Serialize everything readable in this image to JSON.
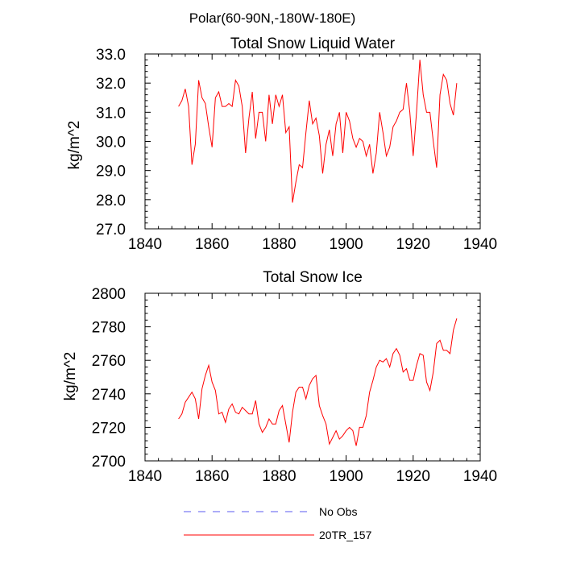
{
  "figure_title": "Polar(60-90N,-180W-180E)",
  "chart_data": [
    {
      "type": "line",
      "title": "Total Snow Liquid Water",
      "ylabel": "kg/m^2",
      "xlabel": "",
      "xlim": [
        1840,
        1940
      ],
      "ylim": [
        27.0,
        33.0
      ],
      "x_ticks": [
        1840,
        1860,
        1880,
        1900,
        1920,
        1940
      ],
      "y_ticks": [
        27.0,
        28.0,
        29.0,
        30.0,
        31.0,
        32.0,
        33.0
      ],
      "x_tick_labels": [
        "1840",
        "1860",
        "1880",
        "1900",
        "1920",
        "1940"
      ],
      "y_tick_labels": [
        "27.0",
        "28.0",
        "29.0",
        "30.0",
        "31.0",
        "32.0",
        "33.0"
      ],
      "series": [
        {
          "name": "20TR_157",
          "color": "#ff0000",
          "x": [
            1850,
            1851,
            1852,
            1853,
            1854,
            1855,
            1856,
            1857,
            1858,
            1859,
            1860,
            1861,
            1862,
            1863,
            1864,
            1865,
            1866,
            1867,
            1868,
            1869,
            1870,
            1871,
            1872,
            1873,
            1874,
            1875,
            1876,
            1877,
            1878,
            1879,
            1880,
            1881,
            1882,
            1883,
            1884,
            1885,
            1886,
            1887,
            1888,
            1889,
            1890,
            1891,
            1892,
            1893,
            1894,
            1895,
            1896,
            1897,
            1898,
            1899,
            1900,
            1901,
            1902,
            1903,
            1904,
            1905,
            1906,
            1907,
            1908,
            1909,
            1910,
            1911,
            1912,
            1913,
            1914,
            1915,
            1916,
            1917,
            1918,
            1919,
            1920,
            1921,
            1922,
            1923,
            1924,
            1925,
            1926,
            1927,
            1928,
            1929,
            1930,
            1931,
            1932,
            1933
          ],
          "values": [
            31.2,
            31.4,
            31.8,
            31.2,
            29.2,
            29.9,
            32.1,
            31.5,
            31.3,
            30.5,
            29.8,
            31.5,
            31.7,
            31.2,
            31.2,
            31.3,
            31.2,
            32.1,
            31.9,
            31.2,
            29.6,
            30.8,
            31.7,
            30.1,
            31.0,
            31.0,
            30.0,
            31.6,
            30.6,
            31.6,
            31.2,
            31.6,
            30.3,
            30.5,
            27.9,
            28.6,
            29.2,
            29.1,
            30.3,
            31.4,
            30.6,
            30.8,
            30.2,
            28.9,
            29.9,
            30.4,
            29.5,
            30.6,
            31.0,
            29.6,
            31.0,
            30.7,
            30.1,
            29.8,
            30.1,
            30.0,
            29.5,
            29.9,
            28.9,
            29.6,
            31.0,
            30.3,
            29.5,
            29.8,
            30.5,
            30.7,
            31.0,
            31.1,
            32.0,
            31.0,
            29.5,
            31.0,
            32.8,
            31.6,
            31.0,
            31.0,
            30.0,
            29.1,
            31.6,
            32.3,
            32.1,
            31.3,
            30.9,
            32.0
          ]
        }
      ]
    },
    {
      "type": "line",
      "title": "Total Snow Ice",
      "ylabel": "kg/m^2",
      "xlabel": "",
      "xlim": [
        1840,
        1940
      ],
      "ylim": [
        2700,
        2800
      ],
      "x_ticks": [
        1840,
        1860,
        1880,
        1900,
        1920,
        1940
      ],
      "y_ticks": [
        2700,
        2720,
        2740,
        2760,
        2780,
        2800
      ],
      "x_tick_labels": [
        "1840",
        "1860",
        "1880",
        "1900",
        "1920",
        "1940"
      ],
      "y_tick_labels": [
        "2700",
        "2720",
        "2740",
        "2760",
        "2780",
        "2800"
      ],
      "series": [
        {
          "name": "20TR_157",
          "color": "#ff0000",
          "x": [
            1850,
            1851,
            1852,
            1853,
            1854,
            1855,
            1856,
            1857,
            1858,
            1859,
            1860,
            1861,
            1862,
            1863,
            1864,
            1865,
            1866,
            1867,
            1868,
            1869,
            1870,
            1871,
            1872,
            1873,
            1874,
            1875,
            1876,
            1877,
            1878,
            1879,
            1880,
            1881,
            1882,
            1883,
            1884,
            1885,
            1886,
            1887,
            1888,
            1889,
            1890,
            1891,
            1892,
            1893,
            1894,
            1895,
            1896,
            1897,
            1898,
            1899,
            1900,
            1901,
            1902,
            1903,
            1904,
            1905,
            1906,
            1907,
            1908,
            1909,
            1910,
            1911,
            1912,
            1913,
            1914,
            1915,
            1916,
            1917,
            1918,
            1919,
            1920,
            1921,
            1922,
            1923,
            1924,
            1925,
            1926,
            1927,
            1928,
            1929,
            1930,
            1931,
            1932,
            1933
          ],
          "values": [
            2725,
            2728,
            2735,
            2738,
            2741,
            2737,
            2725,
            2743,
            2751,
            2757,
            2747,
            2742,
            2728,
            2729,
            2723,
            2731,
            2734,
            2729,
            2728,
            2732,
            2730,
            2728,
            2728,
            2736,
            2722,
            2717,
            2720,
            2725,
            2722,
            2722,
            2730,
            2733,
            2722,
            2711,
            2729,
            2741,
            2744,
            2744,
            2737,
            2745,
            2749,
            2751,
            2733,
            2727,
            2722,
            2710,
            2714,
            2718,
            2713,
            2715,
            2718,
            2720,
            2718,
            2709,
            2720,
            2720,
            2727,
            2741,
            2748,
            2756,
            2760,
            2759,
            2761,
            2756,
            2764,
            2767,
            2763,
            2753,
            2755,
            2748,
            2748,
            2757,
            2764,
            2763,
            2747,
            2742,
            2753,
            2770,
            2772,
            2766,
            2766,
            2764,
            2778,
            2785
          ]
        }
      ]
    }
  ],
  "legend": {
    "placement": "bottom-center",
    "entries": [
      {
        "label": "No Obs",
        "color": "#5a5af0",
        "style": "dashed"
      },
      {
        "label": "20TR_157",
        "color": "#ff0000",
        "style": "solid"
      }
    ]
  }
}
